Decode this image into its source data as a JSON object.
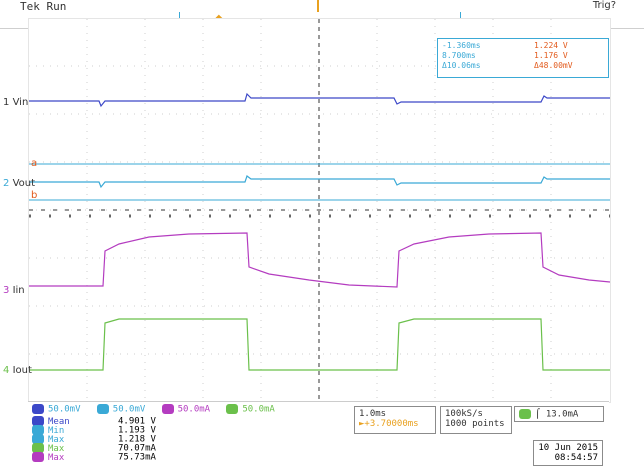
{
  "header": {
    "status": "Tek Run",
    "trigger_status": "Trig?"
  },
  "channel_labels": {
    "vin": "Vin",
    "vout": "Vout",
    "iin": "Iin",
    "iout": "Iout",
    "ch1": "1",
    "ch2": "2",
    "ch3": "3",
    "ch4": "4"
  },
  "cursor_readout": {
    "t1": "-1.360ms",
    "t2": "8.700ms",
    "dt": "Δ10.06ms",
    "v1": "1.224 V",
    "v2": "1.176 V",
    "dv": "Δ48.00mV",
    "marker_a": "a",
    "marker_b": "b"
  },
  "bottom": {
    "scale": {
      "ch1": "50.0mV",
      "ch2": "50.0mV",
      "ch3": "50.0mA",
      "ch4": "50.0mA"
    },
    "stats": [
      {
        "label": "Mean",
        "value": "4.901 V",
        "color": "#3c48c8"
      },
      {
        "label": "Min",
        "value": "1.193 V",
        "color": "#3aa9d6"
      },
      {
        "label": "Max",
        "value": "1.218 V",
        "color": "#3aa9d6"
      },
      {
        "label": "Max",
        "value": "70.07mA",
        "color": "#6bc04b"
      },
      {
        "label": "Max",
        "value": "75.73mA",
        "color": "#b43cc0"
      }
    ],
    "timebase": "1.0ms",
    "trigger_position": "►+3.70000ms",
    "sample_rate": "100kS/s",
    "record_length": "1000 points",
    "trigger_level": "13.0mA",
    "date": "10 Jun 2015",
    "time": "08:54:57"
  }
}
